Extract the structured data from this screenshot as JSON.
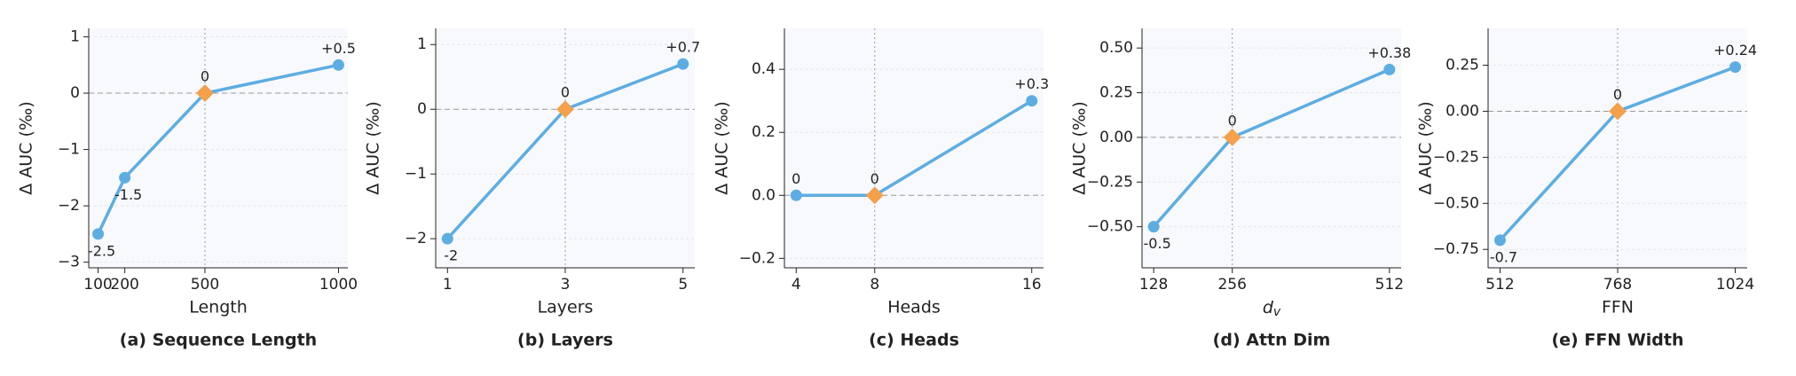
{
  "chart_data": [
    {
      "type": "line",
      "title": "(a) Sequence Length",
      "xlabel": "Length",
      "ylabel": "Δ AUC (‰)",
      "x": [
        100,
        200,
        500,
        1000
      ],
      "values": [
        -2.5,
        -1.5,
        0,
        0.5
      ],
      "value_labels": [
        "-2.5",
        "-1.5",
        "0",
        "+0.5"
      ],
      "xlim": [
        65,
        1035
      ],
      "xticks": [
        100,
        200,
        500,
        1000
      ],
      "ylim": [
        -3.1,
        1.15
      ],
      "yticks": [
        {
          "value": -3,
          "label": "−3"
        },
        {
          "value": -2,
          "label": "−2"
        },
        {
          "value": -1,
          "label": "−1"
        },
        0,
        1
      ],
      "reference_x": 500,
      "reference_y": 0,
      "color": "#5dade2",
      "highlight_color": "#f5a04a",
      "grid": true
    },
    {
      "type": "line",
      "title": "(b) Layers",
      "xlabel": "Layers",
      "ylabel": "Δ AUC (‰)",
      "x": [
        1,
        3,
        5
      ],
      "values": [
        -2,
        0,
        0.7
      ],
      "value_labels": [
        "-2",
        "0",
        "+0.7"
      ],
      "xlim": [
        0.8,
        5.2
      ],
      "xticks": [
        1,
        3,
        5
      ],
      "ylim": [
        -2.45,
        1.25
      ],
      "yticks": [
        {
          "value": -2,
          "label": "−2"
        },
        {
          "value": -1,
          "label": "−1"
        },
        0,
        1
      ],
      "reference_x": 3,
      "reference_y": 0,
      "color": "#5dade2",
      "highlight_color": "#f5a04a",
      "grid": true
    },
    {
      "type": "line",
      "title": "(c) Heads",
      "xlabel": "Heads",
      "ylabel": "Δ AUC (‰)",
      "x": [
        4,
        8,
        16
      ],
      "values": [
        0,
        0,
        0.3
      ],
      "value_labels": [
        "0",
        "0",
        "+0.3"
      ],
      "xlim": [
        3.4,
        16.6
      ],
      "xticks": [
        4,
        8,
        16
      ],
      "ylim": [
        -0.23,
        0.53
      ],
      "yticks": [
        {
          "value": -0.2,
          "label": "−0.2"
        },
        {
          "value": 0,
          "label": "0.0"
        },
        0.2,
        0.4
      ],
      "reference_x": 8,
      "reference_y": 0,
      "color": "#5dade2",
      "highlight_color": "#f5a04a",
      "grid": true
    },
    {
      "type": "line",
      "title": "(d) Attn Dim",
      "xlabel": "d",
      "xlabel_sub": "v",
      "ylabel": "Δ AUC (‰)",
      "x": [
        128,
        256,
        512
      ],
      "values": [
        -0.5,
        0,
        0.38
      ],
      "value_labels": [
        "-0.5",
        "0",
        "+0.38"
      ],
      "xlim": [
        109,
        531
      ],
      "xticks": [
        128,
        256,
        512
      ],
      "ylim": [
        -0.73,
        0.61
      ],
      "yticks": [
        {
          "value": -0.5,
          "label": "−0.50"
        },
        {
          "value": -0.25,
          "label": "−0.25"
        },
        {
          "value": 0,
          "label": "0.00"
        },
        0.25,
        {
          "value": 0.5,
          "label": "0.50"
        }
      ],
      "reference_x": 256,
      "reference_y": 0,
      "color": "#5dade2",
      "highlight_color": "#f5a04a",
      "grid": true
    },
    {
      "type": "line",
      "title": "(e) FFN Width",
      "xlabel": "FFN",
      "ylabel": "Δ AUC (‰)",
      "x": [
        512,
        768,
        1024
      ],
      "values": [
        -0.7,
        0,
        0.24
      ],
      "value_labels": [
        "-0.7",
        "0",
        "+0.24"
      ],
      "xlim": [
        486,
        1050
      ],
      "xticks": [
        512,
        768,
        1024
      ],
      "ylim": [
        -0.85,
        0.45
      ],
      "yticks": [
        {
          "value": -0.75,
          "label": "−0.75"
        },
        {
          "value": -0.5,
          "label": "−0.50"
        },
        {
          "value": -0.25,
          "label": "−0.25"
        },
        {
          "value": 0,
          "label": "0.00"
        },
        0.25
      ],
      "reference_x": 768,
      "reference_y": 0,
      "color": "#5dade2",
      "highlight_color": "#f5a04a",
      "grid": true
    }
  ]
}
